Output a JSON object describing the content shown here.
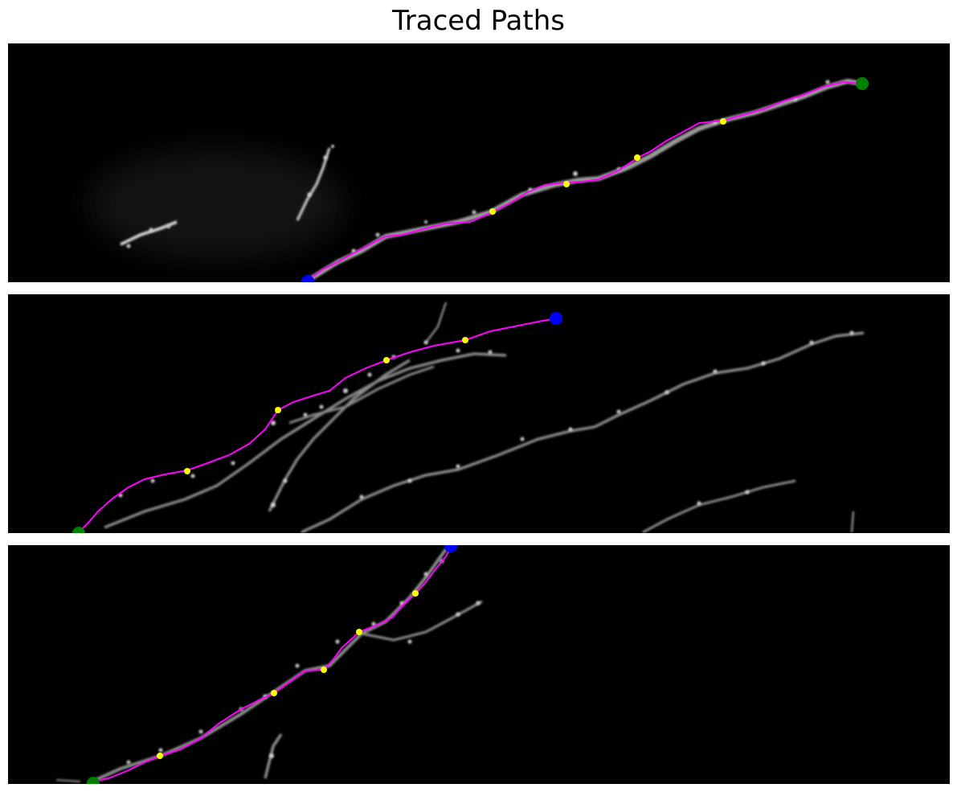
{
  "figure": {
    "title": "Traced Paths"
  },
  "panels": [
    {
      "id": "panel-1",
      "colors": {
        "path": "#ff00ff",
        "start": "#0000ff",
        "end": "#008000",
        "checkpoint": "#ffff00"
      }
    },
    {
      "id": "panel-2",
      "colors": {
        "path": "#ff00ff",
        "start": "#0000ff",
        "end": "#008000",
        "checkpoint": "#ffff00"
      }
    },
    {
      "id": "panel-3",
      "colors": {
        "path": "#ff00ff",
        "start": "#0000ff",
        "end": "#008000",
        "checkpoint": "#ffff00"
      }
    }
  ]
}
